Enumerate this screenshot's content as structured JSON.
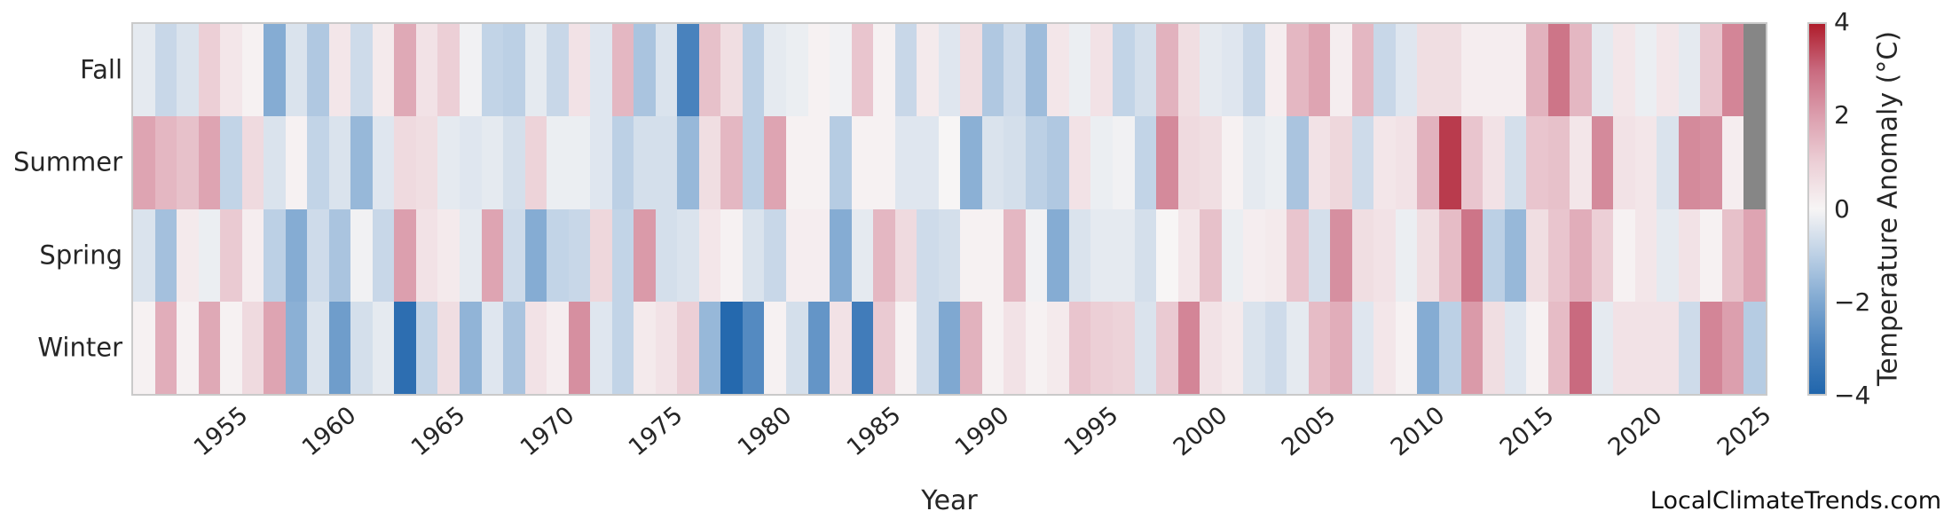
{
  "chart_data": {
    "type": "heatmap",
    "title": "",
    "xlabel": "Year",
    "x": [
      1951,
      1952,
      1953,
      1954,
      1955,
      1956,
      1957,
      1958,
      1959,
      1960,
      1961,
      1962,
      1963,
      1964,
      1965,
      1966,
      1967,
      1968,
      1969,
      1970,
      1971,
      1972,
      1973,
      1974,
      1975,
      1976,
      1977,
      1978,
      1979,
      1980,
      1981,
      1982,
      1983,
      1984,
      1985,
      1986,
      1987,
      1988,
      1989,
      1990,
      1991,
      1992,
      1993,
      1994,
      1995,
      1996,
      1997,
      1998,
      1999,
      2000,
      2001,
      2002,
      2003,
      2004,
      2005,
      2006,
      2007,
      2008,
      2009,
      2010,
      2011,
      2012,
      2013,
      2014,
      2015,
      2016,
      2017,
      2018,
      2019,
      2020,
      2021,
      2022,
      2023,
      2024,
      2025
    ],
    "x_tick_labels": [
      "1955",
      "1960",
      "1965",
      "1970",
      "1975",
      "1980",
      "1985",
      "1990",
      "1995",
      "2000",
      "2005",
      "2010",
      "2015",
      "2020",
      "2025"
    ],
    "rows": [
      "Fall",
      "Summer",
      "Spring",
      "Winter"
    ],
    "series": [
      {
        "name": "Fall",
        "values": [
          -0.3,
          -0.8,
          -0.5,
          1.0,
          0.4,
          0.1,
          -1.9,
          -0.5,
          -1.2,
          0.4,
          -0.7,
          0.3,
          1.8,
          0.5,
          1.0,
          -0.1,
          -0.9,
          -1.0,
          -0.3,
          -0.8,
          0.5,
          -0.4,
          1.5,
          -1.3,
          -0.5,
          -3.0,
          1.3,
          0.6,
          -1.0,
          -0.3,
          -0.2,
          0.1,
          -0.1,
          1.2,
          0.1,
          -0.8,
          0.3,
          -0.4,
          0.6,
          -1.2,
          -0.7,
          -1.5,
          0.4,
          -0.2,
          0.5,
          -0.9,
          -0.6,
          1.6,
          0.6,
          -0.3,
          -0.4,
          -0.8,
          0.2,
          1.5,
          1.9,
          0.2,
          1.5,
          -0.8,
          -0.4,
          0.6,
          0.6,
          0.2,
          0.2,
          0.2,
          1.6,
          2.8,
          1.5,
          -0.3,
          0.4,
          -0.2,
          0.4,
          -0.3,
          1.2,
          2.5,
          null
        ]
      },
      {
        "name": "Summer",
        "values": [
          1.9,
          1.5,
          1.3,
          1.9,
          -0.9,
          0.7,
          -0.5,
          0.1,
          -0.9,
          -0.5,
          -1.6,
          -0.4,
          0.7,
          0.6,
          -0.3,
          -0.4,
          -0.3,
          -0.6,
          0.9,
          -0.2,
          -0.2,
          -0.4,
          -1.0,
          -0.6,
          -0.6,
          -1.6,
          0.6,
          1.5,
          -1.0,
          1.9,
          0.1,
          0.1,
          -1.1,
          0.1,
          0.1,
          -0.4,
          -0.4,
          0.0,
          -1.8,
          -0.5,
          -0.6,
          -1.0,
          -1.2,
          0.5,
          -0.2,
          -0.1,
          -0.9,
          2.4,
          0.7,
          0.6,
          0.1,
          -0.3,
          -0.2,
          -1.3,
          0.5,
          0.8,
          -0.7,
          0.4,
          0.5,
          1.6,
          3.6,
          1.2,
          0.5,
          -0.6,
          1.2,
          1.3,
          0.4,
          2.4,
          0.5,
          0.4,
          -0.5,
          2.4,
          2.3,
          0.2,
          null
        ]
      },
      {
        "name": "Spring",
        "values": [
          -0.5,
          -1.4,
          0.3,
          -0.2,
          1.1,
          0.2,
          -1.0,
          -1.9,
          -0.7,
          -1.3,
          -0.1,
          -0.8,
          2.0,
          0.5,
          0.3,
          -0.3,
          1.9,
          -0.7,
          -1.9,
          -0.9,
          -0.8,
          0.8,
          -0.9,
          2.1,
          -0.6,
          -0.5,
          0.4,
          0.1,
          -0.5,
          -0.8,
          0.2,
          0.2,
          -1.9,
          -0.3,
          1.5,
          0.7,
          -0.7,
          -0.6,
          0.1,
          0.1,
          1.5,
          -0.1,
          -1.9,
          -0.5,
          -0.3,
          -0.3,
          -0.6,
          0.0,
          0.4,
          1.3,
          -0.2,
          0.2,
          0.3,
          1.2,
          -0.6,
          2.3,
          0.6,
          0.5,
          -0.2,
          0.6,
          1.4,
          2.8,
          -1.0,
          -1.6,
          0.6,
          1.2,
          1.7,
          1.0,
          0.1,
          0.4,
          -0.3,
          0.5,
          0.1,
          1.3,
          1.9
        ]
      },
      {
        "name": "Winter",
        "values": [
          0.1,
          1.7,
          0.1,
          1.8,
          0.1,
          0.7,
          1.9,
          -1.8,
          -0.5,
          -2.3,
          -0.6,
          -0.3,
          -3.7,
          -0.9,
          0.6,
          -1.7,
          -0.4,
          -1.3,
          0.5,
          0.2,
          2.3,
          -0.4,
          -0.9,
          0.3,
          0.5,
          1.0,
          -1.6,
          -3.9,
          -2.8,
          0.1,
          -0.6,
          -2.5,
          0.5,
          -3.2,
          1.1,
          0.1,
          -0.7,
          -2.0,
          1.6,
          0.1,
          0.5,
          0.1,
          0.3,
          1.2,
          1.0,
          0.9,
          -0.5,
          1.1,
          2.5,
          0.5,
          0.3,
          -0.5,
          -0.7,
          -0.3,
          1.4,
          1.7,
          -0.4,
          0.4,
          0.1,
          -1.9,
          -1.0,
          2.1,
          0.6,
          -0.4,
          0.1,
          1.4,
          3.0,
          -0.3,
          0.5,
          0.5,
          0.5,
          -0.7,
          2.5,
          2.0,
          -1.1
        ]
      }
    ],
    "missing_note": "Fall 2025 and Summer 2025 shown as gray (no data)",
    "colorbar": {
      "label": "Temperature Anomaly (°C)",
      "ticks": [
        "4",
        "2",
        "0",
        "−2",
        "−4"
      ],
      "tick_values": [
        4,
        2,
        0,
        -2,
        -4
      ],
      "vmin": -4,
      "vmax": 4,
      "gradient_stops": [
        "#af1c2b",
        "#c96a7f",
        "#dc9fae",
        "#eccfd6",
        "#f7f5f5",
        "#bcd0e5",
        "#7fa8d1",
        "#4982bd",
        "#2166ac"
      ]
    },
    "colors": {
      "missing": "#868686",
      "spine": "#cacaca",
      "max_red": "#af1c2b",
      "min_blue": "#2166ac",
      "mid_white": "#f7f5f5"
    },
    "legend_position": "right",
    "grid": false
  },
  "labels": {
    "xlabel": "Year",
    "watermark": "LocalClimateTrends.com"
  }
}
